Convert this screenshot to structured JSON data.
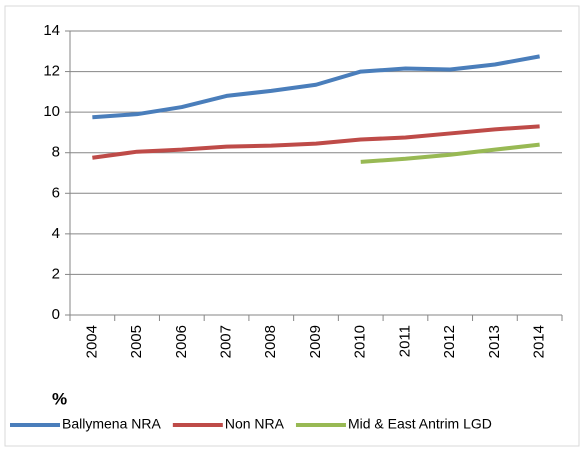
{
  "chart_data": {
    "type": "line",
    "y_label": "%",
    "categories": [
      "2004",
      "2005",
      "2006",
      "2007",
      "2008",
      "2009",
      "2010",
      "2011",
      "2012",
      "2013",
      "2014"
    ],
    "series": [
      {
        "name": "Ballymena NRA",
        "color": "#4a7ebb",
        "values": [
          9.75,
          9.9,
          10.25,
          10.8,
          11.05,
          11.35,
          12.0,
          12.15,
          12.1,
          12.35,
          12.75
        ]
      },
      {
        "name": "Non NRA",
        "color": "#be4b48",
        "values": [
          7.75,
          8.05,
          8.15,
          8.3,
          8.35,
          8.45,
          8.65,
          8.75,
          8.95,
          9.15,
          9.3
        ]
      },
      {
        "name": "Mid & East Antrim LGD",
        "color": "#98b954",
        "values": [
          null,
          null,
          null,
          null,
          null,
          null,
          7.55,
          7.7,
          7.9,
          8.15,
          8.4
        ]
      }
    ],
    "ylim": [
      0,
      14
    ],
    "yticks": [
      0,
      2,
      4,
      6,
      8,
      10,
      12,
      14
    ],
    "grid": true,
    "legend": "bottom"
  }
}
